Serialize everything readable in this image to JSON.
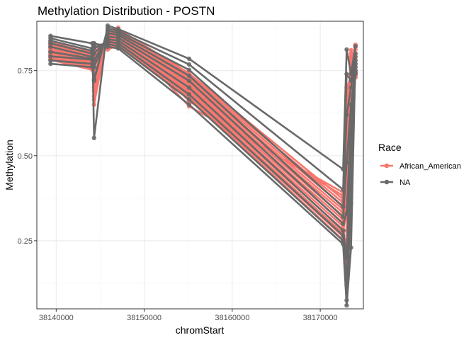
{
  "chart_data": {
    "type": "line",
    "title": "Methylation Distribution - POSTN",
    "xlabel": "chromStart",
    "ylabel": "Methylation",
    "xlim": [
      38137800,
      38174900
    ],
    "ylim": [
      0.05,
      0.895
    ],
    "x_ticks": [
      38140000,
      38150000,
      38160000,
      38170000
    ],
    "x_tick_labels": [
      "38140000",
      "38150000",
      "38160000",
      "38170000"
    ],
    "y_ticks": [
      0.25,
      0.5,
      0.75
    ],
    "y_tick_labels": [
      "0.25",
      "0.50",
      "0.75"
    ],
    "grid": true,
    "legend": {
      "title": "Race",
      "position": "right",
      "entries": [
        {
          "label": "African_American",
          "color": "#F8766D"
        },
        {
          "label": "NA",
          "color": "#696969"
        }
      ]
    },
    "cpg_positions": [
      38139350,
      38144100,
      38144300,
      38145850,
      38147050,
      38155100,
      38172600,
      38173000,
      38173500,
      38174000
    ],
    "series": [
      {
        "name": "African_American",
        "color": "#F8766D",
        "values": [
          0.832,
          0.8,
          0.665,
          0.862,
          0.872,
          0.742,
          0.372,
          0.655,
          0.755,
          0.742
        ]
      },
      {
        "name": "African_American",
        "color": "#F8766D",
        "values": [
          0.828,
          0.792,
          0.65,
          0.858,
          0.868,
          0.736,
          0.362,
          0.6,
          0.76,
          0.738
        ]
      },
      {
        "name": "African_American",
        "color": "#F8766D",
        "values": [
          0.822,
          0.796,
          0.7,
          0.852,
          0.864,
          0.73,
          0.352,
          0.56,
          0.772,
          0.734
        ]
      },
      {
        "name": "African_American",
        "color": "#F8766D",
        "values": [
          0.818,
          0.788,
          0.72,
          0.848,
          0.86,
          0.724,
          0.342,
          0.52,
          0.78,
          0.73
        ]
      },
      {
        "name": "African_American",
        "color": "#F8766D",
        "values": [
          0.814,
          0.784,
          0.74,
          0.844,
          0.856,
          0.72,
          0.332,
          0.48,
          0.79,
          0.76
        ]
      },
      {
        "name": "African_American",
        "color": "#F8766D",
        "values": [
          0.81,
          0.78,
          0.76,
          0.84,
          0.852,
          0.714,
          0.322,
          0.44,
          0.8,
          0.77
        ]
      },
      {
        "name": "African_American",
        "color": "#F8766D",
        "values": [
          0.806,
          0.776,
          0.77,
          0.836,
          0.848,
          0.708,
          0.312,
          0.4,
          0.81,
          0.78
        ]
      },
      {
        "name": "African_American",
        "color": "#F8766D",
        "values": [
          0.802,
          0.772,
          0.78,
          0.832,
          0.844,
          0.702,
          0.302,
          0.36,
          0.79,
          0.79
        ]
      },
      {
        "name": "African_American",
        "color": "#F8766D",
        "values": [
          0.798,
          0.768,
          0.79,
          0.828,
          0.84,
          0.696,
          0.292,
          0.32,
          0.78,
          0.8
        ]
      },
      {
        "name": "African_American",
        "color": "#F8766D",
        "values": [
          0.794,
          0.764,
          0.8,
          0.824,
          0.836,
          0.69,
          0.282,
          0.28,
          0.77,
          0.812
        ]
      },
      {
        "name": "African_American",
        "color": "#F8766D",
        "values": [
          0.79,
          0.76,
          0.81,
          0.82,
          0.832,
          0.684,
          0.272,
          0.24,
          0.76,
          0.82
        ]
      },
      {
        "name": "African_American",
        "color": "#F8766D",
        "values": [
          0.786,
          0.756,
          0.82,
          0.816,
          0.828,
          0.678,
          0.262,
          0.2,
          0.75,
          0.826
        ]
      },
      {
        "name": "African_American",
        "color": "#F8766D",
        "values": [
          0.782,
          0.752,
          0.83,
          0.812,
          0.824,
          0.672,
          0.252,
          0.16,
          0.74,
          0.82
        ]
      },
      {
        "name": "African_American",
        "color": "#F8766D",
        "values": [
          0.836,
          0.808,
          0.69,
          0.866,
          0.876,
          0.66,
          0.382,
          0.7,
          0.73,
          0.74
        ]
      },
      {
        "name": "African_American",
        "color": "#F8766D",
        "values": [
          0.826,
          0.804,
          0.675,
          0.856,
          0.866,
          0.645,
          0.392,
          0.68,
          0.72,
          0.75
        ]
      },
      {
        "name": "NA",
        "color": "#696969",
        "values": [
          0.852,
          0.83,
          0.552,
          0.882,
          0.872,
          0.785,
          0.46,
          0.812,
          0.74,
          0.822
        ]
      },
      {
        "name": "NA",
        "color": "#696969",
        "values": [
          0.845,
          0.815,
          0.72,
          0.875,
          0.866,
          0.768,
          0.4,
          0.74,
          0.72,
          0.8
        ]
      },
      {
        "name": "NA",
        "color": "#696969",
        "values": [
          0.838,
          0.808,
          0.725,
          0.868,
          0.86,
          0.752,
          0.35,
          0.62,
          0.7,
          0.78
        ]
      },
      {
        "name": "NA",
        "color": "#696969",
        "values": [
          0.83,
          0.8,
          0.76,
          0.86,
          0.854,
          0.735,
          0.32,
          0.48,
          0.65,
          0.76
        ]
      },
      {
        "name": "NA",
        "color": "#696969",
        "values": [
          0.82,
          0.79,
          0.78,
          0.85,
          0.846,
          0.72,
          0.3,
          0.33,
          0.6,
          0.75
        ]
      },
      {
        "name": "NA",
        "color": "#696969",
        "values": [
          0.805,
          0.785,
          0.8,
          0.842,
          0.838,
          0.7,
          0.28,
          0.2,
          0.56,
          0.74
        ]
      },
      {
        "name": "NA",
        "color": "#696969",
        "values": [
          0.792,
          0.782,
          0.815,
          0.835,
          0.83,
          0.68,
          0.265,
          0.12,
          0.52,
          0.745
        ]
      },
      {
        "name": "NA",
        "color": "#696969",
        "values": [
          0.78,
          0.77,
          0.825,
          0.828,
          0.822,
          0.665,
          0.25,
          0.075,
          0.36,
          0.77
        ]
      },
      {
        "name": "NA",
        "color": "#696969",
        "values": [
          0.77,
          0.76,
          0.83,
          0.82,
          0.815,
          0.65,
          0.24,
          0.06,
          0.23,
          0.79
        ]
      }
    ]
  }
}
